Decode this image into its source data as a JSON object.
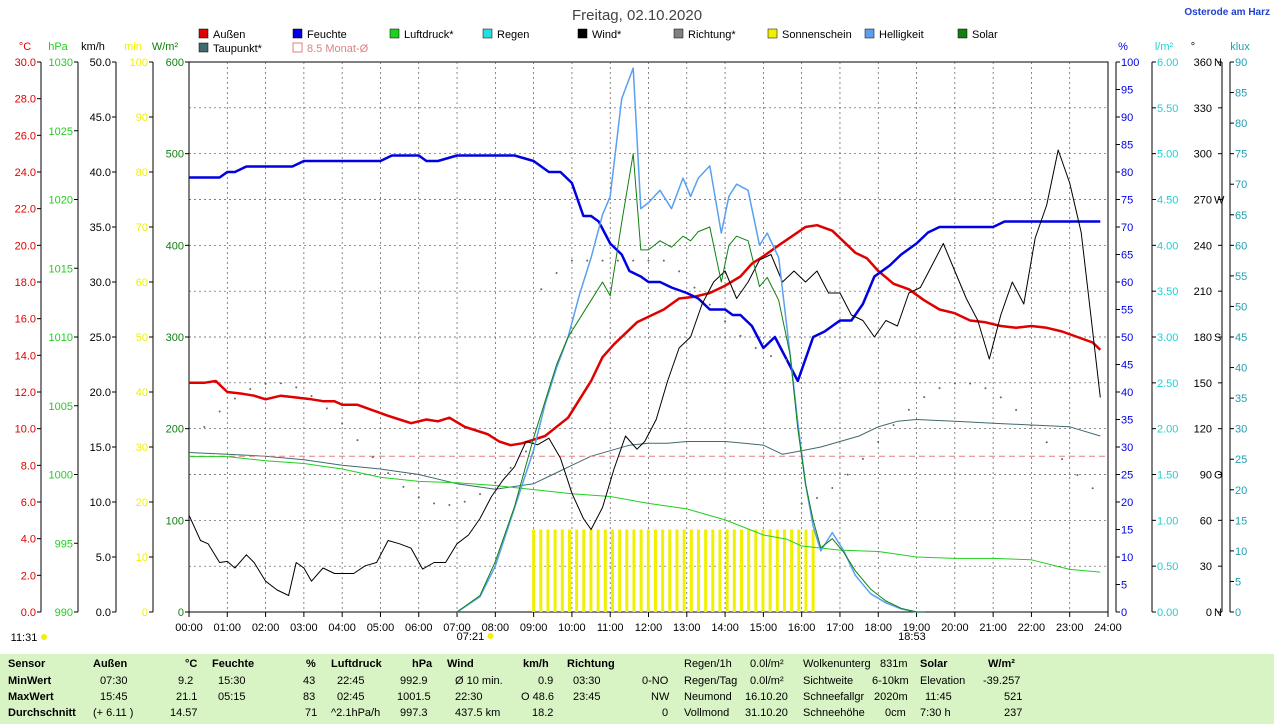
{
  "header": {
    "title": "Freitag, 02.10.2020",
    "station": "Osterode am Harz"
  },
  "legend": [
    {
      "label": "Außen",
      "color": "#e00000"
    },
    {
      "label": "Taupunkt*",
      "color": "#406a6e"
    },
    {
      "label": "Feuchte",
      "color": "#0000e0"
    },
    {
      "label": "8.5 Monat-Ø",
      "color": "#e08080"
    },
    {
      "label": "Luftdruck*",
      "color": "#20d020"
    },
    {
      "label": "Regen",
      "color": "#20e0e0"
    },
    {
      "label": "Wind*",
      "color": "#000000"
    },
    {
      "label": "Richtung*",
      "color": "#808080"
    },
    {
      "label": "Sonnenschein",
      "color": "#f0f000"
    },
    {
      "label": "Helligkeit",
      "color": "#5aa0f0"
    },
    {
      "label": "Solar",
      "color": "#108010"
    }
  ],
  "axis_units": {
    "temp": "°C",
    "hpa": "hPa",
    "kmh": "km/h",
    "min": "min",
    "wm2": "W/m²",
    "pct": "%",
    "lm2": "l/m²",
    "deg": "°",
    "klux": "klux"
  },
  "axis_dirs": {
    "360": "N",
    "270": "W",
    "180": "S",
    "90": "O",
    "0": "N"
  },
  "sunrise": "07:21",
  "sunset": "18:53",
  "current_time": "11:31",
  "chart_data": {
    "type": "line",
    "x_unit": "hour",
    "xlim": [
      0,
      24
    ],
    "x_ticks": [
      "00:00",
      "01:00",
      "02:00",
      "03:00",
      "04:00",
      "05:00",
      "06:00",
      "07:00",
      "08:00",
      "09:00",
      "10:00",
      "11:00",
      "12:00",
      "13:00",
      "14:00",
      "15:00",
      "16:00",
      "17:00",
      "18:00",
      "19:00",
      "20:00",
      "21:00",
      "22:00",
      "23:00",
      "24:00"
    ],
    "axes": {
      "temp": {
        "unit": "°C",
        "range": [
          0,
          30
        ]
      },
      "pressure": {
        "unit": "hPa",
        "range": [
          990,
          1030
        ]
      },
      "wind": {
        "unit": "km/h",
        "range": [
          0,
          50
        ]
      },
      "sunshine": {
        "unit": "min",
        "range": [
          0,
          100
        ]
      },
      "solar": {
        "unit": "W/m²",
        "range": [
          0,
          600
        ]
      },
      "humidity": {
        "unit": "%",
        "range": [
          0,
          100
        ]
      },
      "rain": {
        "unit": "l/m²",
        "range": [
          0,
          6
        ]
      },
      "direction": {
        "unit": "°",
        "range": [
          0,
          360
        ]
      },
      "brightness": {
        "unit": "klux",
        "range": [
          0,
          90
        ]
      }
    },
    "series": [
      {
        "name": "Außen",
        "axis": "temp",
        "color": "#e00000",
        "x": [
          0,
          0.4,
          0.7,
          1,
          1.4,
          1.7,
          2,
          2.4,
          2.8,
          3.2,
          3.5,
          3.8,
          4,
          4.4,
          4.8,
          5.2,
          5.5,
          5.8,
          6.2,
          6.5,
          6.8,
          7.2,
          7.5,
          7.8,
          8.1,
          8.4,
          8.7,
          9,
          9.3,
          9.6,
          9.9,
          10.2,
          10.5,
          10.8,
          11.1,
          11.4,
          11.7,
          12,
          12.4,
          12.8,
          13.2,
          13.6,
          14,
          14.4,
          14.7,
          15,
          15.4,
          15.75,
          16.1,
          16.4,
          16.8,
          17.1,
          17.4,
          17.7,
          18,
          18.4,
          18.8,
          19.2,
          19.6,
          20,
          20.4,
          20.8,
          21.2,
          21.6,
          22,
          22.4,
          22.8,
          23.2,
          23.6,
          23.8
        ],
        "y": [
          12.5,
          12.5,
          12.6,
          12.0,
          11.9,
          11.8,
          11.6,
          11.8,
          11.7,
          11.6,
          11.5,
          11.5,
          11.3,
          11.3,
          11.0,
          10.7,
          10.5,
          10.3,
          10.5,
          10.4,
          10.6,
          10.1,
          9.9,
          9.7,
          9.3,
          9.1,
          9.2,
          9.4,
          9.6,
          10.1,
          10.6,
          11.6,
          12.6,
          13.9,
          14.6,
          15.2,
          15.8,
          16.1,
          16.5,
          17.1,
          17.2,
          17.4,
          17.8,
          18.3,
          19.0,
          19.4,
          20.0,
          20.5,
          21.0,
          21.1,
          20.8,
          20.2,
          19.6,
          19.3,
          18.6,
          17.9,
          17.6,
          17.0,
          16.5,
          16.3,
          15.9,
          15.8,
          15.6,
          15.5,
          15.6,
          15.5,
          15.3,
          15.0,
          14.7,
          14.3
        ]
      },
      {
        "name": "Taupunkt*",
        "axis": "temp",
        "color": "#406a6e",
        "x": [
          0,
          1,
          2,
          3,
          4,
          5,
          6,
          7,
          8,
          9,
          9.5,
          10,
          10.5,
          11,
          11.5,
          12,
          12.5,
          13,
          13.5,
          14,
          14.5,
          15,
          15.5,
          16,
          16.5,
          17,
          17.5,
          18,
          18.5,
          19,
          20,
          21,
          22,
          23,
          23.8
        ],
        "y": [
          8.7,
          8.6,
          8.5,
          8.3,
          8.0,
          7.8,
          7.5,
          7.0,
          6.7,
          7.0,
          7.5,
          8.0,
          8.5,
          8.8,
          9.1,
          9.2,
          9.2,
          9.3,
          9.3,
          9.3,
          9.2,
          9.1,
          8.6,
          8.8,
          9.0,
          9.3,
          9.6,
          10.1,
          10.4,
          10.5,
          10.4,
          10.3,
          10.2,
          10.1,
          9.6
        ]
      },
      {
        "name": "Feuchte",
        "axis": "humidity",
        "color": "#0000e0",
        "x": [
          0,
          0.8,
          1,
          1.2,
          1.5,
          2,
          2.7,
          3,
          4,
          5,
          5.3,
          6,
          6.2,
          6.5,
          7,
          7.5,
          8,
          8.5,
          9,
          9.4,
          9.7,
          10,
          10.3,
          10.5,
          10.7,
          11,
          11.3,
          11.5,
          11.8,
          12,
          12.3,
          12.6,
          13,
          13.3,
          13.6,
          14,
          14.2,
          14.4,
          14.7,
          15,
          15.3,
          15.6,
          15.9,
          16.3,
          16.6,
          17,
          17.3,
          17.6,
          17.9,
          18.3,
          18.6,
          19,
          19.3,
          19.6,
          20,
          20.6,
          21,
          21.3,
          22,
          22.3,
          22.6,
          23,
          23.8
        ],
        "y": [
          79,
          79,
          80,
          80,
          81,
          81,
          81,
          82,
          82,
          82,
          83,
          83,
          82,
          82,
          83,
          83,
          83,
          83,
          82,
          80,
          80,
          78,
          72,
          72,
          71,
          67,
          65,
          62,
          61,
          60,
          60,
          59,
          58,
          57,
          55,
          55,
          54,
          54,
          52,
          48,
          50,
          46,
          42,
          50,
          51,
          53,
          53,
          56,
          61,
          63,
          65,
          67,
          69,
          70,
          70,
          70,
          70,
          71,
          71,
          71,
          71,
          71,
          71
        ]
      },
      {
        "name": "8.5 Monat-Ø",
        "axis": "temp",
        "color": "#e08080",
        "x": [
          0,
          24
        ],
        "y": [
          8.5,
          8.5
        ]
      },
      {
        "name": "Luftdruck*",
        "axis": "pressure",
        "color": "#20d020",
        "x": [
          0,
          1,
          2,
          3,
          4,
          5,
          6,
          7,
          8,
          9,
          10,
          11,
          12,
          13,
          14,
          15,
          15.6,
          16,
          17,
          18,
          19,
          20,
          21,
          22,
          23,
          23.8
        ],
        "y": [
          1001.3,
          1001.3,
          1001.0,
          1000.8,
          1000.4,
          999.8,
          999.5,
          999.4,
          999.2,
          998.9,
          998.6,
          998.4,
          997.9,
          997.5,
          996.7,
          995.6,
          995.3,
          994.8,
          994.5,
          994.4,
          994.0,
          993.9,
          993.9,
          993.8,
          993.1,
          992.9
        ]
      },
      {
        "name": "Wind*",
        "axis": "wind",
        "color": "#000000",
        "x": [
          0,
          0.3,
          0.5,
          0.8,
          1,
          1.2,
          1.5,
          1.7,
          2,
          2.3,
          2.6,
          2.8,
          3,
          3.2,
          3.5,
          3.8,
          4,
          4.3,
          4.6,
          4.9,
          5.2,
          5.5,
          5.8,
          6.1,
          6.4,
          6.7,
          7,
          7.3,
          7.6,
          7.9,
          8.2,
          8.5,
          8.8,
          9.1,
          9.4,
          9.7,
          10,
          10.3,
          10.5,
          10.8,
          11.1,
          11.4,
          11.7,
          11.9,
          12.2,
          12.5,
          12.8,
          13.1,
          13.4,
          13.7,
          14,
          14.3,
          14.6,
          14.9,
          15.2,
          15.5,
          15.8,
          16.1,
          16.4,
          16.7,
          17,
          17.3,
          17.6,
          17.9,
          18.2,
          18.5,
          18.8,
          19.1,
          19.4,
          19.7,
          20,
          20.3,
          20.6,
          20.9,
          21.2,
          21.5,
          21.8,
          22.1,
          22.4,
          22.7,
          23,
          23.3,
          23.6,
          23.8
        ],
        "y": [
          8.8,
          6.5,
          6.2,
          4.5,
          4.6,
          4,
          5.2,
          4.5,
          2.8,
          2,
          1.5,
          4.5,
          4,
          2.8,
          4,
          3.5,
          3.5,
          3.5,
          4.2,
          4.5,
          6.5,
          6.2,
          5.8,
          3.9,
          4.5,
          4.5,
          6.2,
          7,
          8.5,
          10.5,
          12,
          13.2,
          15.5,
          15.2,
          15.8,
          14,
          10.8,
          8.5,
          7.5,
          9.5,
          13,
          16,
          14.8,
          15.5,
          17.5,
          21,
          24,
          25,
          28,
          30,
          31,
          28.5,
          30,
          32,
          32.5,
          30,
          31,
          30,
          31,
          29,
          29,
          27,
          26.5,
          25,
          26.5,
          26,
          29,
          29.5,
          31.5,
          33.5,
          31,
          28.5,
          26.5,
          23,
          27,
          30,
          28,
          34,
          37,
          42,
          39,
          34.5,
          25.5,
          19.5
        ]
      },
      {
        "name": "Sonnenschein",
        "axis": "sunshine",
        "color": "#f0f000",
        "x": [
          9,
          16.3
        ],
        "y": [
          15,
          15
        ]
      },
      {
        "name": "Helligkeit",
        "axis": "brightness",
        "color": "#5aa0f0",
        "x": [
          7,
          7.6,
          8,
          8.5,
          9,
          9.3,
          9.6,
          9.9,
          10.2,
          10.5,
          10.8,
          11,
          11.3,
          11.6,
          11.8,
          12,
          12.3,
          12.6,
          12.9,
          13.1,
          13.3,
          13.6,
          13.9,
          14.1,
          14.3,
          14.6,
          14.9,
          15.1,
          15.4,
          15.7,
          15.9,
          16.1,
          16.3,
          16.5,
          16.8,
          17.1,
          17.4,
          17.8,
          18.2,
          18.6,
          19,
          19.2
        ],
        "y": [
          0,
          2.5,
          7.5,
          17,
          26.5,
          34,
          40,
          45,
          52,
          58,
          65,
          68,
          84,
          89,
          66,
          67,
          69,
          66,
          71,
          68,
          71,
          73,
          62,
          68,
          70,
          69,
          60,
          62,
          58,
          42,
          31,
          21,
          14,
          10,
          13,
          10,
          6,
          3,
          1.5,
          0.5,
          0,
          0
        ]
      },
      {
        "name": "Solar",
        "axis": "solar",
        "color": "#108010",
        "x": [
          7,
          7.6,
          8,
          8.5,
          9,
          9.3,
          9.6,
          9.9,
          10.2,
          10.5,
          10.8,
          11,
          11.3,
          11.6,
          11.8,
          12,
          12.3,
          12.6,
          12.9,
          13.1,
          13.3,
          13.6,
          13.9,
          14.1,
          14.3,
          14.6,
          14.9,
          15.1,
          15.4,
          15.7,
          15.9,
          16.1,
          16.3,
          16.5,
          16.8,
          17.1,
          17.4,
          17.8,
          18.2,
          18.6,
          19,
          19.2
        ],
        "y": [
          0,
          18,
          55,
          115,
          190,
          230,
          270,
          300,
          320,
          340,
          360,
          345,
          425,
          500,
          395,
          395,
          405,
          398,
          410,
          405,
          415,
          420,
          360,
          400,
          410,
          405,
          355,
          365,
          340,
          280,
          200,
          140,
          100,
          70,
          80,
          65,
          45,
          25,
          12,
          4,
          0,
          0
        ]
      }
    ],
    "sunshine_bars": {
      "x_start": 9.0,
      "x_end": 16.3,
      "bar_count": 40,
      "value": 15
    }
  },
  "summary": {
    "rows": [
      "MinWert",
      "MaxWert",
      "Durchschnitt"
    ],
    "sensor_label": "Sensor",
    "aussen": {
      "label": "Außen",
      "unit": "°C",
      "min_time": "07:30",
      "min_val": "9.2",
      "max_time": "15:45",
      "max_val": "21.1",
      "avg_extra": "(+ 6.11 )",
      "avg_val": "14.57"
    },
    "feuchte": {
      "label": "Feuchte",
      "unit": "%",
      "min_time": "15:30",
      "min_val": "43",
      "max_time": "05:15",
      "max_val": "83",
      "avg_val": "71"
    },
    "luftdruck": {
      "label": "Luftdruck",
      "unit": "hPa",
      "min_time": "22:45",
      "min_val": "992.9",
      "max_time": "02:45",
      "max_val": "1001.5",
      "avg_extra": "^2.1hPa/h",
      "avg_val": "997.3"
    },
    "wind": {
      "label": "Wind",
      "unit": "km/h",
      "min_time": "Ø 10 min.",
      "min_val": "0.9",
      "max_time": "22:30",
      "max_val": "O 48.6",
      "avg_extra": "437.5 km",
      "avg_val": "18.2"
    },
    "richtung": {
      "label": "Richtung",
      "min_time": "03:30",
      "min_val": "0-NO",
      "max_time": "23:45",
      "max_val": "NW",
      "avg_val": "0"
    },
    "regen": [
      {
        "k": "Regen/1h",
        "v": "0.0l/m²"
      },
      {
        "k": "Regen/Tag",
        "v": "0.0l/m²"
      },
      {
        "k": "Neumond",
        "v": "16.10.20"
      },
      {
        "k": "Vollmond",
        "v": "31.10.20"
      }
    ],
    "wolken": [
      {
        "k": "Wolkenunterg",
        "v": "831m"
      },
      {
        "k": "Sichtweite",
        "v": "6-10km"
      },
      {
        "k": "Schneefallgr",
        "v": "2020m"
      },
      {
        "k": "Schneehöhe",
        "v": "0cm"
      }
    ],
    "solar": {
      "label": "Solar",
      "unit": "W/m²",
      "r1k": "Elevation",
      "r1v": "-39.257",
      "r2k": "11:45",
      "r2v": "521",
      "r3k": "7:30 h",
      "r3v": "237"
    }
  }
}
